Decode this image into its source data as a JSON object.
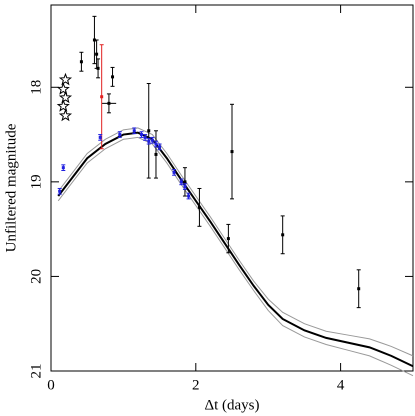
{
  "chart_data": {
    "type": "scatter",
    "xlabel": "Δt (days)",
    "ylabel": "Unfiltered magnitude",
    "xlim": [
      0,
      5
    ],
    "ylim": [
      17.13,
      21
    ],
    "y_inverted": true,
    "xticks": [
      0,
      2,
      4
    ],
    "yticks": [
      18,
      19,
      20,
      21
    ],
    "series": [
      {
        "marker": "line",
        "color": "#999999",
        "width": 1,
        "x": [
          0.1,
          0.3,
          0.5,
          0.75,
          1.0,
          1.2,
          1.4,
          1.6,
          1.8,
          2.0,
          2.2,
          2.4,
          2.6,
          2.8,
          3.0,
          3.2,
          3.5,
          3.8,
          4.1,
          4.4,
          4.7,
          5.0
        ],
        "values": [
          19.1,
          18.9,
          18.7,
          18.55,
          18.45,
          18.43,
          18.5,
          18.7,
          18.93,
          19.15,
          19.37,
          19.6,
          19.83,
          20.05,
          20.24,
          20.38,
          20.5,
          20.58,
          20.62,
          20.66,
          20.74,
          20.84
        ]
      },
      {
        "marker": "line",
        "color": "#999999",
        "width": 1,
        "x": [
          0.1,
          0.3,
          0.5,
          0.75,
          1.0,
          1.2,
          1.4,
          1.6,
          1.8,
          2.0,
          2.2,
          2.4,
          2.6,
          2.8,
          3.0,
          3.2,
          3.5,
          3.8,
          4.1,
          4.4,
          4.7,
          5.0
        ],
        "values": [
          19.2,
          19.0,
          18.8,
          18.65,
          18.55,
          18.53,
          18.6,
          18.8,
          19.03,
          19.25,
          19.47,
          19.7,
          19.93,
          20.15,
          20.36,
          20.52,
          20.64,
          20.72,
          20.78,
          20.84,
          20.94,
          21.05
        ]
      },
      {
        "marker": "line",
        "color": "#000000",
        "width": 2,
        "x": [
          0.1,
          0.3,
          0.5,
          0.75,
          1.0,
          1.2,
          1.4,
          1.6,
          1.8,
          2.0,
          2.2,
          2.4,
          2.6,
          2.8,
          3.0,
          3.2,
          3.5,
          3.8,
          4.1,
          4.4,
          4.7,
          5.0
        ],
        "values": [
          19.15,
          18.95,
          18.75,
          18.6,
          18.5,
          18.48,
          18.55,
          18.75,
          18.98,
          19.2,
          19.42,
          19.65,
          19.88,
          20.1,
          20.3,
          20.45,
          20.57,
          20.65,
          20.7,
          20.75,
          20.84,
          20.95
        ]
      },
      {
        "marker": "errorbar",
        "color": "#000000",
        "x": [
          0.42,
          0.6,
          0.63,
          0.65,
          0.85,
          0.8,
          1.35,
          1.45,
          1.85,
          2.05,
          2.45,
          2.5,
          3.2,
          4.25
        ],
        "values": [
          17.73,
          17.5,
          17.65,
          17.8,
          17.89,
          18.17,
          18.46,
          18.71,
          19.0,
          19.27,
          19.6,
          18.68,
          19.56,
          20.13
        ],
        "errors": [
          0.1,
          0.25,
          0.15,
          0.1,
          0.1,
          0.1,
          0.5,
          0.25,
          0.15,
          0.2,
          0.15,
          0.5,
          0.2,
          0.2
        ],
        "xerrors": [
          null,
          null,
          null,
          null,
          null,
          0.1,
          null,
          null,
          null,
          null,
          null,
          null,
          null,
          null
        ]
      },
      {
        "marker": "errorbar",
        "color": "#e02020",
        "x": [
          0.7
        ],
        "values": [
          18.1
        ],
        "errors": [
          0.55
        ],
        "xerrors": [
          null
        ]
      },
      {
        "marker": "errorbar",
        "color": "#2020e0",
        "x": [
          0.12,
          0.17,
          0.68,
          0.95,
          1.15,
          1.25,
          1.3,
          1.35,
          1.4,
          1.45,
          1.5,
          1.7,
          1.8,
          1.85,
          1.9
        ],
        "values": [
          19.1,
          18.85,
          18.53,
          18.5,
          18.46,
          18.5,
          18.53,
          18.57,
          18.56,
          18.6,
          18.63,
          18.9,
          19.0,
          19.05,
          19.15
        ],
        "errors": [
          0.03,
          0.03,
          0.03,
          0.03,
          0.03,
          0.03,
          0.03,
          0.03,
          0.03,
          0.03,
          0.03,
          0.03,
          0.03,
          0.03,
          0.03
        ],
        "xerrors": [
          null,
          null,
          null,
          null,
          null,
          null,
          null,
          null,
          null,
          null,
          null,
          null,
          null,
          null,
          null
        ]
      },
      {
        "marker": "star",
        "color": "#000000",
        "x": [
          0.2,
          0.17,
          0.2,
          0.17,
          0.2
        ],
        "values": [
          17.92,
          18.02,
          18.11,
          18.2,
          18.3
        ]
      }
    ]
  }
}
